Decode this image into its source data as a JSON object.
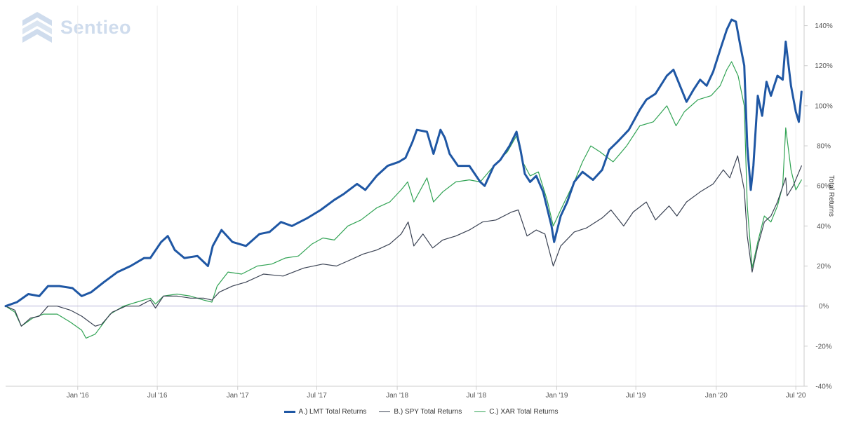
{
  "logo": {
    "text": "Sentieo"
  },
  "colors": {
    "lmt": "#1f57a4",
    "spy": "#3a4253",
    "xar": "#31a354",
    "zero_line": "#b8b4d8",
    "grid": "#eeeeee"
  },
  "chart_data": {
    "type": "line",
    "title": "",
    "ylabel": "Total Returns",
    "ylim": [
      -40,
      150
    ],
    "y_ticks": [
      -40,
      -20,
      0,
      20,
      40,
      60,
      80,
      100,
      120,
      140
    ],
    "y_tick_labels": [
      "-40%",
      "-20%",
      "0%",
      "20%",
      "40%",
      "60%",
      "80%",
      "100%",
      "120%",
      "140%"
    ],
    "x_tick_labels": [
      "Jan '16",
      "Jul '16",
      "Jan '17",
      "Jul '17",
      "Jan '18",
      "Jul '18",
      "Jan '19",
      "Jul '19",
      "Jan '20",
      "Jul '20"
    ],
    "x_tick_dates": [
      "2016-01-01",
      "2016-07-01",
      "2017-01-01",
      "2017-07-01",
      "2018-01-01",
      "2018-07-01",
      "2019-01-01",
      "2019-07-01",
      "2020-01-01",
      "2020-07-01"
    ],
    "x_range": [
      "2015-07-20",
      "2020-07-20"
    ],
    "legend_position": "bottom",
    "series": [
      {
        "name": "A.) LMT Total Returns",
        "key": "lmt",
        "points": [
          [
            "2015-07-20",
            0
          ],
          [
            "2015-08-15",
            2
          ],
          [
            "2015-09-10",
            6
          ],
          [
            "2015-10-05",
            5
          ],
          [
            "2015-10-25",
            10
          ],
          [
            "2015-11-20",
            10
          ],
          [
            "2015-12-20",
            9
          ],
          [
            "2016-01-10",
            5
          ],
          [
            "2016-02-01",
            7
          ],
          [
            "2016-03-01",
            12
          ],
          [
            "2016-04-01",
            17
          ],
          [
            "2016-05-01",
            20
          ],
          [
            "2016-06-01",
            24
          ],
          [
            "2016-06-15",
            24
          ],
          [
            "2016-07-10",
            32
          ],
          [
            "2016-07-25",
            35
          ],
          [
            "2016-08-10",
            28
          ],
          [
            "2016-09-01",
            24
          ],
          [
            "2016-10-01",
            25
          ],
          [
            "2016-10-25",
            20
          ],
          [
            "2016-11-05",
            30
          ],
          [
            "2016-11-25",
            38
          ],
          [
            "2016-12-20",
            32
          ],
          [
            "2017-01-20",
            30
          ],
          [
            "2017-02-20",
            36
          ],
          [
            "2017-03-15",
            37
          ],
          [
            "2017-04-10",
            42
          ],
          [
            "2017-05-05",
            40
          ],
          [
            "2017-06-10",
            44
          ],
          [
            "2017-07-10",
            48
          ],
          [
            "2017-08-10",
            53
          ],
          [
            "2017-09-01",
            56
          ],
          [
            "2017-10-01",
            61
          ],
          [
            "2017-10-20",
            58
          ],
          [
            "2017-11-15",
            65
          ],
          [
            "2017-12-10",
            70
          ],
          [
            "2018-01-05",
            72
          ],
          [
            "2018-01-20",
            74
          ],
          [
            "2018-02-05",
            82
          ],
          [
            "2018-02-15",
            88
          ],
          [
            "2018-03-10",
            87
          ],
          [
            "2018-03-25",
            76
          ],
          [
            "2018-04-10",
            88
          ],
          [
            "2018-04-20",
            84
          ],
          [
            "2018-05-01",
            76
          ],
          [
            "2018-05-20",
            70
          ],
          [
            "2018-06-15",
            70
          ],
          [
            "2018-07-10",
            62
          ],
          [
            "2018-07-20",
            60
          ],
          [
            "2018-08-10",
            70
          ],
          [
            "2018-08-25",
            73
          ],
          [
            "2018-09-15",
            80
          ],
          [
            "2018-10-01",
            87
          ],
          [
            "2018-10-10",
            78
          ],
          [
            "2018-10-20",
            66
          ],
          [
            "2018-11-01",
            62
          ],
          [
            "2018-11-15",
            65
          ],
          [
            "2018-12-01",
            57
          ],
          [
            "2018-12-20",
            40
          ],
          [
            "2018-12-26",
            32
          ],
          [
            "2019-01-10",
            45
          ],
          [
            "2019-01-25",
            52
          ],
          [
            "2019-02-10",
            62
          ],
          [
            "2019-03-01",
            67
          ],
          [
            "2019-03-25",
            63
          ],
          [
            "2019-04-15",
            68
          ],
          [
            "2019-05-01",
            78
          ],
          [
            "2019-05-20",
            82
          ],
          [
            "2019-06-15",
            88
          ],
          [
            "2019-07-10",
            98
          ],
          [
            "2019-07-25",
            103
          ],
          [
            "2019-08-15",
            106
          ],
          [
            "2019-09-10",
            115
          ],
          [
            "2019-09-25",
            118
          ],
          [
            "2019-10-10",
            110
          ],
          [
            "2019-10-25",
            102
          ],
          [
            "2019-11-10",
            108
          ],
          [
            "2019-11-25",
            113
          ],
          [
            "2019-12-10",
            110
          ],
          [
            "2019-12-25",
            117
          ],
          [
            "2020-01-10",
            128
          ],
          [
            "2020-01-25",
            138
          ],
          [
            "2020-02-05",
            143
          ],
          [
            "2020-02-15",
            142
          ],
          [
            "2020-02-25",
            130
          ],
          [
            "2020-03-05",
            120
          ],
          [
            "2020-03-12",
            80
          ],
          [
            "2020-03-20",
            58
          ],
          [
            "2020-03-26",
            70
          ],
          [
            "2020-04-05",
            105
          ],
          [
            "2020-04-15",
            95
          ],
          [
            "2020-04-25",
            112
          ],
          [
            "2020-05-05",
            105
          ],
          [
            "2020-05-20",
            115
          ],
          [
            "2020-06-01",
            113
          ],
          [
            "2020-06-08",
            132
          ],
          [
            "2020-06-20",
            110
          ],
          [
            "2020-07-01",
            97
          ],
          [
            "2020-07-08",
            92
          ],
          [
            "2020-07-14",
            107
          ]
        ]
      },
      {
        "name": "B.) SPY Total Returns",
        "key": "spy",
        "points": [
          [
            "2015-07-20",
            0
          ],
          [
            "2015-08-10",
            -2
          ],
          [
            "2015-08-25",
            -10
          ],
          [
            "2015-09-15",
            -6
          ],
          [
            "2015-10-05",
            -5
          ],
          [
            "2015-10-25",
            0
          ],
          [
            "2015-11-15",
            0
          ],
          [
            "2015-12-15",
            -2
          ],
          [
            "2016-01-10",
            -5
          ],
          [
            "2016-02-10",
            -10
          ],
          [
            "2016-02-25",
            -9
          ],
          [
            "2016-03-20",
            -3
          ],
          [
            "2016-04-20",
            0
          ],
          [
            "2016-05-20",
            0
          ],
          [
            "2016-06-15",
            3
          ],
          [
            "2016-06-27",
            -1
          ],
          [
            "2016-07-15",
            5
          ],
          [
            "2016-08-15",
            5
          ],
          [
            "2016-09-15",
            4
          ],
          [
            "2016-10-15",
            4
          ],
          [
            "2016-11-03",
            3
          ],
          [
            "2016-11-20",
            7
          ],
          [
            "2016-12-20",
            10
          ],
          [
            "2017-01-20",
            12
          ],
          [
            "2017-03-01",
            16
          ],
          [
            "2017-04-15",
            15
          ],
          [
            "2017-06-01",
            19
          ],
          [
            "2017-07-15",
            21
          ],
          [
            "2017-08-15",
            20
          ],
          [
            "2017-09-15",
            23
          ],
          [
            "2017-10-15",
            26
          ],
          [
            "2017-11-15",
            28
          ],
          [
            "2017-12-15",
            31
          ],
          [
            "2018-01-10",
            36
          ],
          [
            "2018-01-26",
            42
          ],
          [
            "2018-02-08",
            30
          ],
          [
            "2018-03-01",
            36
          ],
          [
            "2018-03-23",
            29
          ],
          [
            "2018-04-15",
            33
          ],
          [
            "2018-05-15",
            35
          ],
          [
            "2018-06-15",
            38
          ],
          [
            "2018-07-15",
            42
          ],
          [
            "2018-08-15",
            43
          ],
          [
            "2018-09-20",
            47
          ],
          [
            "2018-10-05",
            48
          ],
          [
            "2018-10-25",
            35
          ],
          [
            "2018-11-15",
            38
          ],
          [
            "2018-12-05",
            36
          ],
          [
            "2018-12-24",
            20
          ],
          [
            "2019-01-10",
            30
          ],
          [
            "2019-02-10",
            37
          ],
          [
            "2019-03-10",
            39
          ],
          [
            "2019-04-15",
            44
          ],
          [
            "2019-05-05",
            48
          ],
          [
            "2019-06-03",
            40
          ],
          [
            "2019-06-25",
            47
          ],
          [
            "2019-07-25",
            52
          ],
          [
            "2019-08-15",
            43
          ],
          [
            "2019-09-15",
            50
          ],
          [
            "2019-10-03",
            45
          ],
          [
            "2019-10-25",
            52
          ],
          [
            "2019-11-25",
            57
          ],
          [
            "2019-12-25",
            61
          ],
          [
            "2020-01-17",
            68
          ],
          [
            "2020-02-01",
            64
          ],
          [
            "2020-02-19",
            75
          ],
          [
            "2020-03-05",
            58
          ],
          [
            "2020-03-12",
            35
          ],
          [
            "2020-03-23",
            17
          ],
          [
            "2020-04-05",
            30
          ],
          [
            "2020-04-20",
            42
          ],
          [
            "2020-05-05",
            45
          ],
          [
            "2020-05-20",
            52
          ],
          [
            "2020-06-08",
            64
          ],
          [
            "2020-06-11",
            55
          ],
          [
            "2020-06-25",
            60
          ],
          [
            "2020-07-14",
            70
          ]
        ]
      },
      {
        "name": "C.) XAR Total Returns",
        "key": "xar",
        "points": [
          [
            "2015-07-20",
            0
          ],
          [
            "2015-08-10",
            -3
          ],
          [
            "2015-08-25",
            -10
          ],
          [
            "2015-09-20",
            -6
          ],
          [
            "2015-10-15",
            -4
          ],
          [
            "2015-11-15",
            -4
          ],
          [
            "2015-12-15",
            -8
          ],
          [
            "2016-01-10",
            -12
          ],
          [
            "2016-01-20",
            -16
          ],
          [
            "2016-02-10",
            -14
          ],
          [
            "2016-03-15",
            -4
          ],
          [
            "2016-04-15",
            0
          ],
          [
            "2016-05-15",
            2
          ],
          [
            "2016-06-15",
            4
          ],
          [
            "2016-06-27",
            1
          ],
          [
            "2016-07-15",
            5
          ],
          [
            "2016-08-15",
            6
          ],
          [
            "2016-09-15",
            5
          ],
          [
            "2016-10-15",
            3
          ],
          [
            "2016-11-03",
            2
          ],
          [
            "2016-11-15",
            10
          ],
          [
            "2016-12-10",
            17
          ],
          [
            "2017-01-10",
            16
          ],
          [
            "2017-02-15",
            20
          ],
          [
            "2017-03-20",
            21
          ],
          [
            "2017-04-20",
            24
          ],
          [
            "2017-05-20",
            25
          ],
          [
            "2017-06-20",
            31
          ],
          [
            "2017-07-15",
            34
          ],
          [
            "2017-08-10",
            33
          ],
          [
            "2017-09-10",
            40
          ],
          [
            "2017-10-10",
            43
          ],
          [
            "2017-11-15",
            49
          ],
          [
            "2017-12-15",
            52
          ],
          [
            "2018-01-10",
            58
          ],
          [
            "2018-01-25",
            62
          ],
          [
            "2018-02-08",
            52
          ],
          [
            "2018-03-10",
            64
          ],
          [
            "2018-03-25",
            52
          ],
          [
            "2018-04-15",
            57
          ],
          [
            "2018-05-15",
            62
          ],
          [
            "2018-06-15",
            63
          ],
          [
            "2018-07-10",
            62
          ],
          [
            "2018-08-10",
            70
          ],
          [
            "2018-09-10",
            77
          ],
          [
            "2018-10-01",
            85
          ],
          [
            "2018-10-15",
            72
          ],
          [
            "2018-11-01",
            65
          ],
          [
            "2018-11-20",
            67
          ],
          [
            "2018-12-10",
            53
          ],
          [
            "2018-12-24",
            40
          ],
          [
            "2019-01-10",
            48
          ],
          [
            "2019-02-10",
            62
          ],
          [
            "2019-03-01",
            72
          ],
          [
            "2019-03-20",
            80
          ],
          [
            "2019-04-10",
            77
          ],
          [
            "2019-05-10",
            72
          ],
          [
            "2019-06-10",
            80
          ],
          [
            "2019-07-10",
            90
          ],
          [
            "2019-08-10",
            92
          ],
          [
            "2019-09-10",
            100
          ],
          [
            "2019-10-01",
            90
          ],
          [
            "2019-10-20",
            97
          ],
          [
            "2019-11-20",
            103
          ],
          [
            "2019-12-20",
            105
          ],
          [
            "2020-01-10",
            110
          ],
          [
            "2020-01-25",
            118
          ],
          [
            "2020-02-05",
            122
          ],
          [
            "2020-02-20",
            115
          ],
          [
            "2020-03-05",
            100
          ],
          [
            "2020-03-12",
            50
          ],
          [
            "2020-03-23",
            19
          ],
          [
            "2020-04-05",
            32
          ],
          [
            "2020-04-20",
            45
          ],
          [
            "2020-05-05",
            42
          ],
          [
            "2020-05-20",
            50
          ],
          [
            "2020-06-01",
            60
          ],
          [
            "2020-06-08",
            89
          ],
          [
            "2020-06-20",
            68
          ],
          [
            "2020-07-01",
            58
          ],
          [
            "2020-07-14",
            63
          ]
        ]
      }
    ]
  }
}
